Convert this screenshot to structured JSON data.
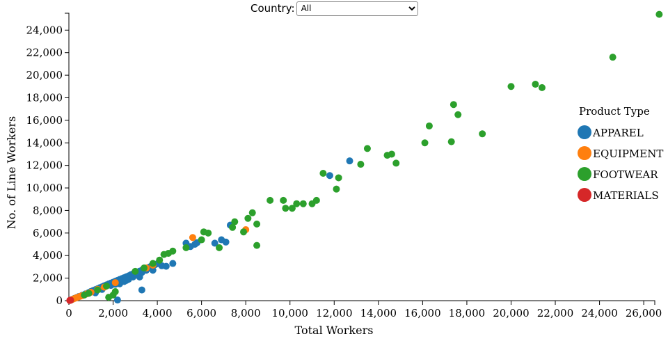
{
  "filter": {
    "label": "Country:",
    "selected": "All"
  },
  "chart_data": {
    "type": "scatter",
    "xlabel": "Total Workers",
    "ylabel": "No. of Line Workers",
    "xlim": [
      0,
      26500
    ],
    "ylim": [
      0,
      25500
    ],
    "xticks": [
      0,
      2000,
      4000,
      6000,
      8000,
      10000,
      12000,
      14000,
      16000,
      18000,
      20000,
      22000,
      24000,
      26000
    ],
    "yticks": [
      0,
      2000,
      4000,
      6000,
      8000,
      10000,
      12000,
      14000,
      16000,
      18000,
      20000,
      22000,
      24000
    ],
    "grid": false,
    "legend": {
      "title": "Product Type",
      "placement": "right"
    },
    "series": [
      {
        "name": "APPAREL",
        "color": "#1f77b4",
        "points": [
          [
            60,
            40
          ],
          [
            150,
            110
          ],
          [
            250,
            200
          ],
          [
            350,
            280
          ],
          [
            450,
            370
          ],
          [
            600,
            480
          ],
          [
            750,
            600
          ],
          [
            900,
            720
          ],
          [
            1000,
            820
          ],
          [
            1100,
            900
          ],
          [
            1200,
            980
          ],
          [
            1300,
            1060
          ],
          [
            1400,
            1150
          ],
          [
            1500,
            1230
          ],
          [
            1600,
            1320
          ],
          [
            1700,
            1400
          ],
          [
            1800,
            1480
          ],
          [
            1900,
            1560
          ],
          [
            2000,
            1640
          ],
          [
            2100,
            1720
          ],
          [
            2200,
            1800
          ],
          [
            2300,
            1880
          ],
          [
            2400,
            1960
          ],
          [
            2500,
            2040
          ],
          [
            2600,
            2120
          ],
          [
            2700,
            2200
          ],
          [
            2800,
            2300
          ],
          [
            2900,
            2380
          ],
          [
            3000,
            2460
          ],
          [
            3100,
            2540
          ],
          [
            3200,
            2620
          ],
          [
            3300,
            2700
          ],
          [
            3400,
            2780
          ],
          [
            3500,
            2860
          ],
          [
            3600,
            2940
          ],
          [
            3700,
            3040
          ],
          [
            3800,
            3120
          ],
          [
            3900,
            3200
          ],
          [
            4000,
            3280
          ],
          [
            2300,
            1500
          ],
          [
            2500,
            1700
          ],
          [
            2700,
            1900
          ],
          [
            2900,
            2100
          ],
          [
            3100,
            2300
          ],
          [
            3300,
            2500
          ],
          [
            3500,
            2700
          ],
          [
            1200,
            700
          ],
          [
            1500,
            1000
          ],
          [
            1900,
            1350
          ],
          [
            2100,
            1450
          ],
          [
            2600,
            1800
          ],
          [
            3200,
            2100
          ],
          [
            3800,
            2700
          ],
          [
            4200,
            3100
          ],
          [
            4400,
            3050
          ],
          [
            4700,
            3300
          ],
          [
            3300,
            950
          ],
          [
            2200,
            60
          ],
          [
            5300,
            5100
          ],
          [
            5500,
            4800
          ],
          [
            5700,
            5000
          ],
          [
            5800,
            5150
          ],
          [
            6600,
            5100
          ],
          [
            6900,
            5400
          ],
          [
            7100,
            5200
          ],
          [
            7300,
            6700
          ],
          [
            11800,
            11100
          ],
          [
            12700,
            12400
          ]
        ]
      },
      {
        "name": "EQUIPMENT",
        "color": "#ff7f0e",
        "points": [
          [
            100,
            60
          ],
          [
            200,
            150
          ],
          [
            300,
            230
          ],
          [
            400,
            300
          ],
          [
            500,
            380
          ],
          [
            600,
            450
          ],
          [
            800,
            600
          ],
          [
            1000,
            750
          ],
          [
            1300,
            1000
          ],
          [
            1600,
            1200
          ],
          [
            2100,
            1600
          ],
          [
            3500,
            2900
          ],
          [
            3800,
            3150
          ],
          [
            5600,
            5600
          ],
          [
            8000,
            6300
          ]
        ]
      },
      {
        "name": "FOOTWEAR",
        "color": "#2ca02c",
        "points": [
          [
            700,
            500
          ],
          [
            900,
            650
          ],
          [
            1300,
            950
          ],
          [
            1700,
            1300
          ],
          [
            1800,
            300
          ],
          [
            2000,
            500
          ],
          [
            2100,
            800
          ],
          [
            3000,
            2600
          ],
          [
            3400,
            2900
          ],
          [
            3800,
            3300
          ],
          [
            4100,
            3600
          ],
          [
            4300,
            4100
          ],
          [
            4500,
            4200
          ],
          [
            4700,
            4400
          ],
          [
            5300,
            4700
          ],
          [
            6000,
            5400
          ],
          [
            6100,
            6100
          ],
          [
            6300,
            6000
          ],
          [
            6800,
            4700
          ],
          [
            7400,
            6500
          ],
          [
            7500,
            7000
          ],
          [
            7900,
            6100
          ],
          [
            8100,
            7300
          ],
          [
            8300,
            7800
          ],
          [
            8500,
            6800
          ],
          [
            8500,
            4900
          ],
          [
            9100,
            8900
          ],
          [
            9700,
            8900
          ],
          [
            9800,
            8200
          ],
          [
            10100,
            8200
          ],
          [
            10300,
            8600
          ],
          [
            10600,
            8600
          ],
          [
            11000,
            8600
          ],
          [
            11200,
            8900
          ],
          [
            11500,
            11300
          ],
          [
            12100,
            9900
          ],
          [
            12200,
            10900
          ],
          [
            13200,
            12100
          ],
          [
            13500,
            13500
          ],
          [
            14400,
            12900
          ],
          [
            14600,
            13000
          ],
          [
            14800,
            12200
          ],
          [
            16100,
            14000
          ],
          [
            16300,
            15500
          ],
          [
            17300,
            14100
          ],
          [
            17400,
            17400
          ],
          [
            17600,
            16500
          ],
          [
            18700,
            14800
          ],
          [
            20000,
            19000
          ],
          [
            21100,
            19200
          ],
          [
            21400,
            18900
          ],
          [
            24600,
            21600
          ],
          [
            26700,
            25400
          ]
        ]
      },
      {
        "name": "MATERIALS",
        "color": "#d62728",
        "points": [
          [
            40,
            20
          ],
          [
            80,
            50
          ]
        ]
      }
    ]
  }
}
